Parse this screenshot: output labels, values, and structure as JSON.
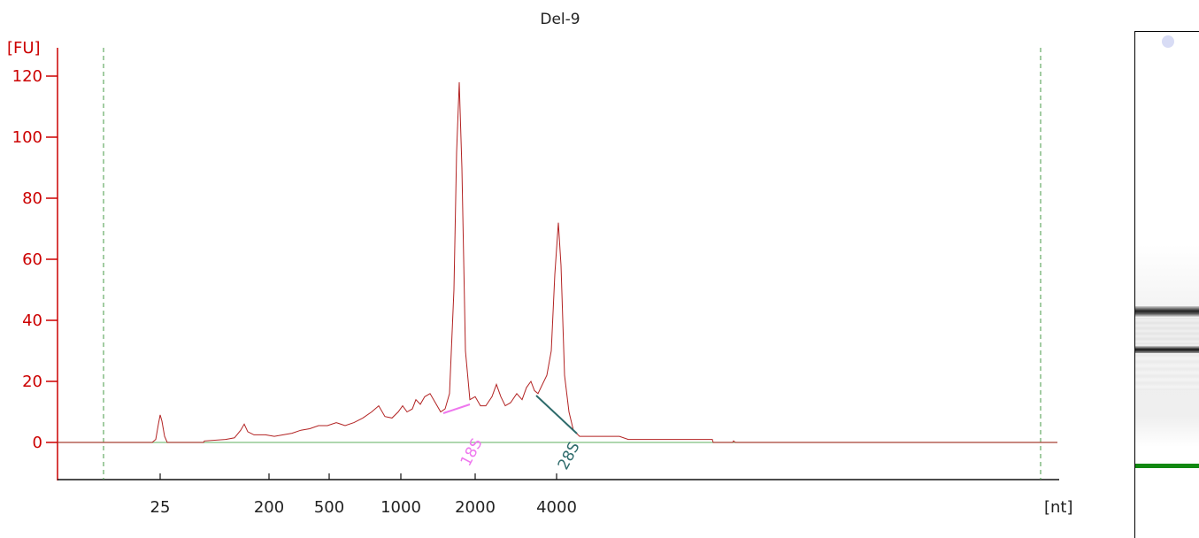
{
  "chart_data": {
    "type": "line",
    "title": "Del-9",
    "ylabel": "[FU]",
    "xlabel": "[nt]",
    "ylim": [
      -12,
      130
    ],
    "y_ticks": [
      0,
      20,
      40,
      60,
      80,
      100,
      120
    ],
    "x_ticks": [
      "25",
      "200",
      "500",
      "1000",
      "2000",
      "4000"
    ],
    "grid": false,
    "colors": {
      "axis": "#cc0000",
      "trace": "#b22222",
      "baseline": "#7fbf7f",
      "marker": "#449944",
      "label_18s": "#ee77ee",
      "label_28s": "#2e6b6b"
    },
    "markers": [
      {
        "name": "18S",
        "value": "18S"
      },
      {
        "name": "28S",
        "value": "28S"
      }
    ],
    "gel": {
      "lane_color": "#e8e8e8",
      "marker_band_color": "#118811",
      "bands": [
        "28S",
        "18S"
      ]
    }
  }
}
